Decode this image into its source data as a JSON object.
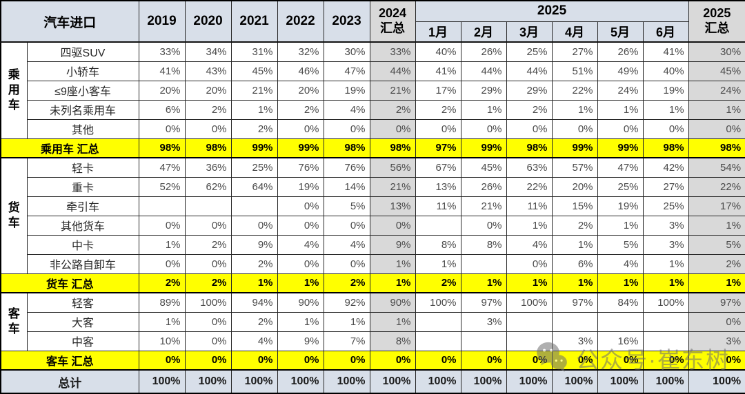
{
  "table": {
    "title": "汽车进口",
    "header": {
      "years": [
        "2019",
        "2020",
        "2021",
        "2022",
        "2023"
      ],
      "summary_2024": "2024\n汇总",
      "group_2025": "2025",
      "months": [
        "1月",
        "2月",
        "3月",
        "4月",
        "5月",
        "6月"
      ],
      "summary_2025": "2025\n汇总"
    },
    "groups": [
      {
        "name": "乘用车",
        "rows": [
          {
            "label": "四驱SUV",
            "values": [
              "33%",
              "34%",
              "31%",
              "32%",
              "30%",
              "33%",
              "40%",
              "26%",
              "25%",
              "27%",
              "26%",
              "41%",
              "30%"
            ]
          },
          {
            "label": "小轿车",
            "values": [
              "41%",
              "43%",
              "45%",
              "46%",
              "47%",
              "44%",
              "41%",
              "44%",
              "44%",
              "51%",
              "49%",
              "40%",
              "45%"
            ]
          },
          {
            "label": "≤9座小客车",
            "values": [
              "20%",
              "20%",
              "21%",
              "20%",
              "19%",
              "21%",
              "17%",
              "29%",
              "29%",
              "22%",
              "24%",
              "19%",
              "24%"
            ]
          },
          {
            "label": "未列名乘用车",
            "values": [
              "6%",
              "2%",
              "1%",
              "2%",
              "4%",
              "2%",
              "2%",
              "1%",
              "2%",
              "1%",
              "1%",
              "1%",
              "1%"
            ]
          },
          {
            "label": "其他",
            "values": [
              "0%",
              "0%",
              "2%",
              "0%",
              "0%",
              "0%",
              "0%",
              "0%",
              "0%",
              "0%",
              "0%",
              "0%",
              "0%"
            ]
          }
        ],
        "total": {
          "label": "乘用车 汇总",
          "values": [
            "98%",
            "98%",
            "99%",
            "99%",
            "98%",
            "98%",
            "97%",
            "99%",
            "98%",
            "99%",
            "99%",
            "98%",
            "98%"
          ]
        }
      },
      {
        "name": "货车",
        "rows": [
          {
            "label": "轻卡",
            "values": [
              "47%",
              "36%",
              "25%",
              "76%",
              "76%",
              "56%",
              "67%",
              "45%",
              "63%",
              "57%",
              "47%",
              "42%",
              "54%"
            ]
          },
          {
            "label": "重卡",
            "values": [
              "52%",
              "62%",
              "64%",
              "19%",
              "14%",
              "21%",
              "13%",
              "26%",
              "22%",
              "20%",
              "25%",
              "27%",
              "22%"
            ]
          },
          {
            "label": "牵引车",
            "values": [
              "",
              "",
              "",
              "0%",
              "5%",
              "13%",
              "11%",
              "21%",
              "11%",
              "15%",
              "19%",
              "25%",
              "17%"
            ]
          },
          {
            "label": "其他货车",
            "values": [
              "0%",
              "0%",
              "0%",
              "0%",
              "0%",
              "0%",
              "",
              "0%",
              "1%",
              "2%",
              "1%",
              "3%",
              "1%"
            ]
          },
          {
            "label": "中卡",
            "values": [
              "1%",
              "2%",
              "9%",
              "4%",
              "4%",
              "9%",
              "8%",
              "8%",
              "4%",
              "1%",
              "5%",
              "3%",
              "5%"
            ]
          },
          {
            "label": "非公路自卸车",
            "values": [
              "0%",
              "0%",
              "2%",
              "0%",
              "0%",
              "1%",
              "1%",
              "",
              "0%",
              "6%",
              "4%",
              "1%",
              "2%"
            ]
          }
        ],
        "total": {
          "label": "货车 汇总",
          "values": [
            "2%",
            "2%",
            "1%",
            "1%",
            "2%",
            "1%",
            "2%",
            "1%",
            "1%",
            "1%",
            "1%",
            "1%",
            "1%"
          ]
        }
      },
      {
        "name": "客车",
        "rows": [
          {
            "label": "轻客",
            "values": [
              "89%",
              "100%",
              "94%",
              "90%",
              "92%",
              "90%",
              "100%",
              "97%",
              "100%",
              "97%",
              "84%",
              "100%",
              "97%"
            ]
          },
          {
            "label": "大客",
            "values": [
              "1%",
              "0%",
              "2%",
              "1%",
              "1%",
              "1%",
              "",
              "3%",
              "",
              "",
              "",
              "",
              "0%"
            ]
          },
          {
            "label": "中客",
            "values": [
              "10%",
              "0%",
              "4%",
              "9%",
              "7%",
              "8%",
              "",
              "",
              "",
              "3%",
              "16%",
              "",
              "3%"
            ]
          }
        ],
        "total": {
          "label": "客车 汇总",
          "values": [
            "0%",
            "0%",
            "0%",
            "0%",
            "0%",
            "0%",
            "0%",
            "0%",
            "0%",
            "0%",
            "0%",
            "0%",
            "0%"
          ]
        }
      }
    ],
    "grand_total": {
      "label": "总计",
      "values": [
        "100%",
        "100%",
        "100%",
        "100%",
        "100%",
        "100%",
        "100%",
        "100%",
        "100%",
        "100%",
        "100%",
        "100%",
        "100%"
      ]
    }
  },
  "watermark": {
    "icon": "wechat-icon",
    "text": "公众号·崔东树"
  },
  "colors": {
    "header_blue": "#d8dfe9",
    "summary_gray": "#d9d9d9",
    "highlight_yellow": "#ffff00",
    "grand_total_blue": "#d8dfe9",
    "value_text": "#4a4a4a",
    "watermark_gray": "#6e6e6e"
  }
}
